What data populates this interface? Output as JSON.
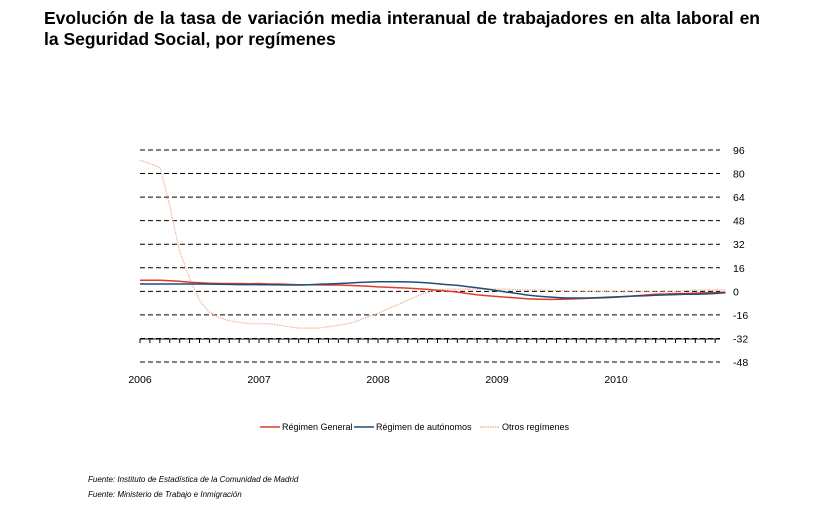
{
  "title": "Evolución de la tasa de variación media interanual de trabajadores en alta laboral en la Seguridad Social, por  regímenes",
  "sources": [
    "Fuente: Instituto de Estadística de la Comunidad de Madrid",
    "Fuente: Ministerio de Trabajo e Inmigración"
  ],
  "chart_data": {
    "type": "line",
    "x_tick_labels": [
      "2006",
      "2007",
      "2008",
      "2009",
      "2010"
    ],
    "y_tick_labels": [
      "96",
      "80",
      "64",
      "48",
      "32",
      "16",
      "0",
      "-16",
      "-32",
      "-48"
    ],
    "ylim": [
      -48,
      96
    ],
    "grid": "horizontal dashed",
    "legend_position": "bottom",
    "x": [
      2006.0,
      2006.08,
      2006.17,
      2006.25,
      2006.33,
      2006.42,
      2006.5,
      2006.58,
      2006.67,
      2006.75,
      2006.83,
      2006.92,
      2007.0,
      2007.08,
      2007.17,
      2007.25,
      2007.33,
      2007.42,
      2007.5,
      2007.58,
      2007.67,
      2007.75,
      2007.83,
      2007.92,
      2008.0,
      2008.08,
      2008.17,
      2008.25,
      2008.33,
      2008.42,
      2008.5,
      2008.58,
      2008.67,
      2008.75,
      2008.83,
      2008.92,
      2009.0,
      2009.08,
      2009.17,
      2009.25,
      2009.33,
      2009.42,
      2009.5,
      2009.58,
      2009.67,
      2009.75,
      2009.83,
      2009.92,
      2010.0,
      2010.08,
      2010.17,
      2010.25,
      2010.33,
      2010.42,
      2010.5,
      2010.58,
      2010.67,
      2010.75,
      2010.83,
      2010.92
    ],
    "series": [
      {
        "name": "Régimen General",
        "color": "#e03c28",
        "values": [
          7.5,
          7.5,
          7.5,
          7.2,
          6.8,
          6.2,
          5.8,
          5.5,
          5.3,
          5.3,
          5.3,
          5.1,
          5.3,
          5.0,
          5.0,
          4.7,
          4.5,
          4.5,
          4.4,
          4.3,
          4.3,
          4.0,
          3.8,
          3.5,
          3.0,
          2.8,
          2.5,
          2.2,
          1.8,
          1.3,
          0.8,
          0.2,
          -0.5,
          -1.5,
          -2.3,
          -3.0,
          -3.5,
          -4.0,
          -4.5,
          -5.0,
          -5.3,
          -5.5,
          -5.5,
          -5.3,
          -5.0,
          -4.8,
          -4.5,
          -4.3,
          -4.0,
          -3.5,
          -3.0,
          -2.5,
          -2.0,
          -1.8,
          -1.5,
          -1.5,
          -1.2,
          -1.0,
          -0.8,
          -0.5
        ]
      },
      {
        "name": "Régimen de autónomos",
        "color": "#1f4e79",
        "values": [
          5.0,
          5.0,
          5.0,
          5.0,
          5.0,
          5.0,
          5.0,
          4.9,
          4.8,
          4.7,
          4.6,
          4.6,
          4.5,
          4.5,
          4.4,
          4.3,
          4.3,
          4.5,
          4.8,
          5.0,
          5.3,
          5.6,
          6.0,
          6.3,
          6.5,
          6.5,
          6.5,
          6.4,
          6.2,
          5.7,
          5.2,
          4.6,
          4.0,
          3.2,
          2.5,
          1.5,
          0.5,
          -0.5,
          -1.5,
          -2.5,
          -3.2,
          -3.8,
          -4.2,
          -4.5,
          -4.5,
          -4.5,
          -4.3,
          -4.0,
          -3.8,
          -3.5,
          -3.2,
          -3.0,
          -2.6,
          -2.4,
          -2.2,
          -2.0,
          -2.0,
          -1.8,
          -1.5,
          -1.0
        ]
      },
      {
        "name": "Otros regímenes",
        "color": "#f0b49a",
        "values": [
          89,
          87,
          84,
          58,
          28,
          8,
          -6,
          -14,
          -18,
          -20,
          -21,
          -22,
          -22,
          -22,
          -23,
          -24,
          -25,
          -25,
          -25,
          -24,
          -23,
          -22,
          -20,
          -17,
          -15,
          -12,
          -9,
          -6,
          -3,
          -0.5,
          1,
          1.5,
          1.5,
          1.5,
          1.5,
          1.5,
          1.5,
          1.5,
          1.2,
          1,
          1,
          0.8,
          0.5,
          0.3,
          0.2,
          0,
          -0.2,
          -0.2,
          -0.2,
          -0.3,
          -0.3,
          -0.3,
          -0.3,
          -0.3,
          -0.2,
          0.5,
          1.0,
          1.0,
          1.0,
          1.0
        ]
      }
    ]
  }
}
